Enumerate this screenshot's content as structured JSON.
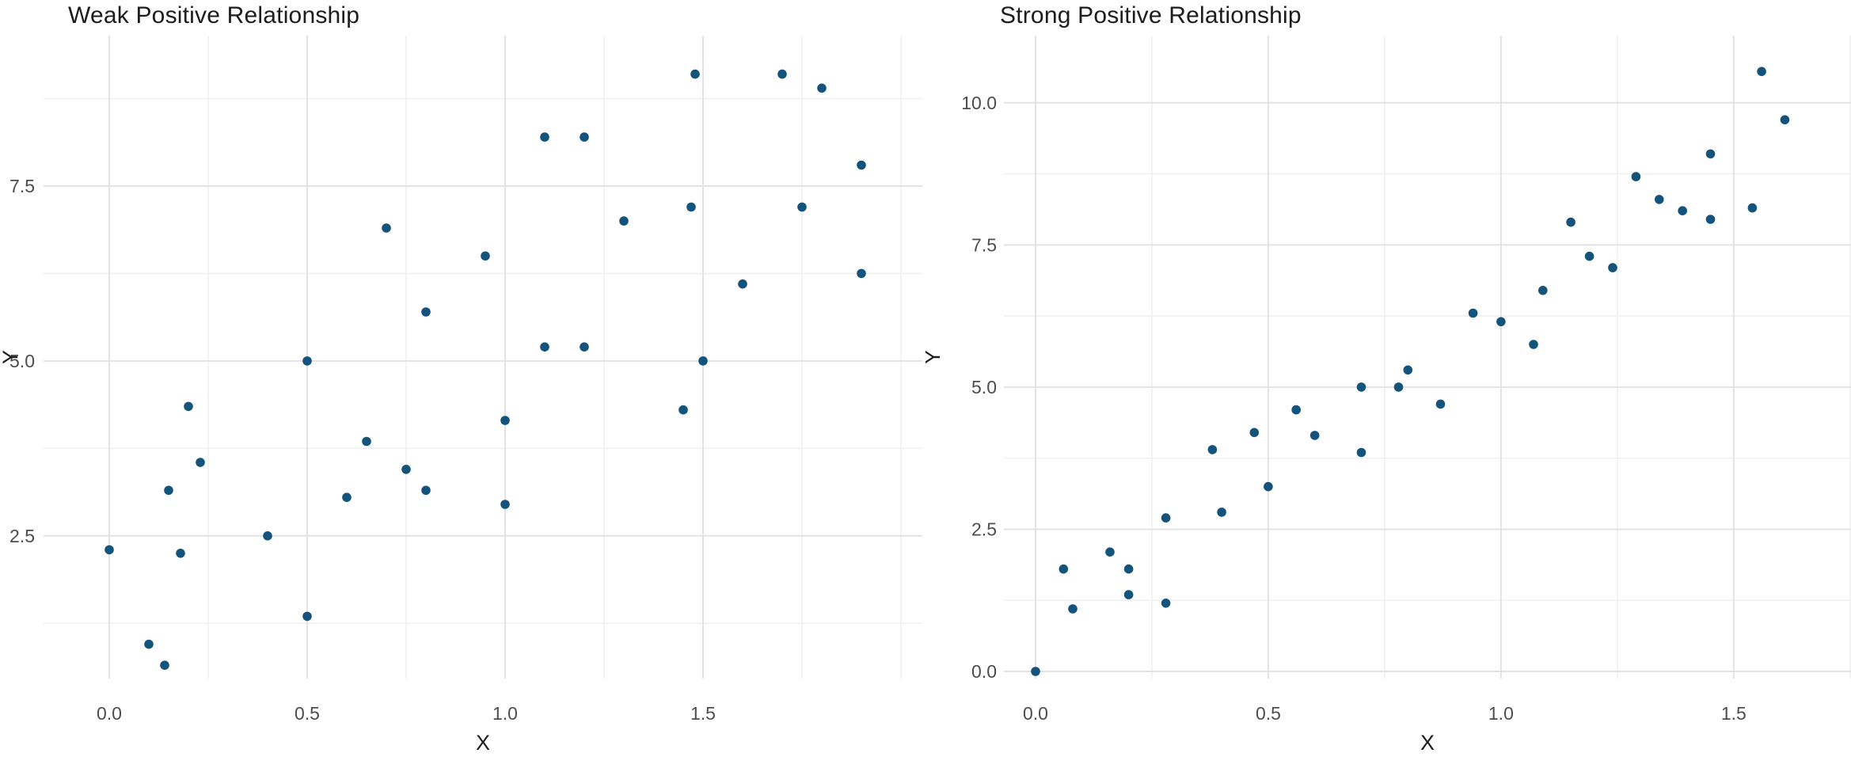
{
  "figure": {
    "background": "#ffffff",
    "grid_major_color": "#e3e3e3",
    "grid_minor_color": "#f0f0f0",
    "tick_text_color": "#4d4d4d",
    "title_text_color": "#1d1d1d"
  },
  "chart_data": [
    {
      "type": "scatter",
      "title": "Weak Positive Relationship",
      "xlabel": "X",
      "ylabel": "Y",
      "legend_position": "none",
      "grid": true,
      "point_color": "#14537C",
      "xlim": [
        -0.166,
        2.054
      ],
      "ylim": [
        0.46,
        9.65
      ],
      "x_tick_values": [
        0.0,
        0.5,
        1.0,
        1.5
      ],
      "x_tick_labels": [
        "0.0",
        "0.5",
        "1.0",
        "1.5"
      ],
      "x_minor_values": [
        0.25,
        0.75,
        1.25,
        1.75,
        2.0
      ],
      "y_tick_values": [
        2.5,
        5.0,
        7.5
      ],
      "y_tick_labels": [
        "2.5",
        "5.0",
        "7.5"
      ],
      "y_minor_values": [
        1.25,
        3.75,
        6.25,
        8.75
      ],
      "points": [
        [
          0.0,
          2.3
        ],
        [
          0.1,
          0.95
        ],
        [
          0.14,
          0.65
        ],
        [
          0.15,
          3.15
        ],
        [
          0.18,
          2.25
        ],
        [
          0.2,
          4.35
        ],
        [
          0.23,
          3.55
        ],
        [
          0.4,
          2.5
        ],
        [
          0.5,
          1.35
        ],
        [
          0.5,
          5.0
        ],
        [
          0.6,
          3.05
        ],
        [
          0.65,
          3.85
        ],
        [
          0.7,
          6.9
        ],
        [
          0.75,
          3.45
        ],
        [
          0.8,
          3.15
        ],
        [
          0.8,
          5.7
        ],
        [
          0.95,
          6.5
        ],
        [
          1.0,
          4.15
        ],
        [
          1.0,
          2.95
        ],
        [
          1.1,
          5.2
        ],
        [
          1.1,
          8.2
        ],
        [
          1.2,
          5.2
        ],
        [
          1.2,
          8.2
        ],
        [
          1.3,
          7.0
        ],
        [
          1.45,
          4.3
        ],
        [
          1.47,
          7.2
        ],
        [
          1.48,
          9.1
        ],
        [
          1.5,
          5.0
        ],
        [
          1.6,
          6.1
        ],
        [
          1.7,
          9.1
        ],
        [
          1.75,
          7.2
        ],
        [
          1.8,
          8.9
        ],
        [
          1.9,
          6.25
        ],
        [
          1.9,
          7.8
        ]
      ]
    },
    {
      "type": "scatter",
      "title": "Strong Positive Relationship",
      "xlabel": "X",
      "ylabel": "Y",
      "legend_position": "none",
      "grid": true,
      "point_color": "#14537C",
      "xlim": [
        -0.068,
        1.752
      ],
      "ylim": [
        -0.125,
        11.18
      ],
      "x_tick_values": [
        0.0,
        0.5,
        1.0,
        1.5
      ],
      "x_tick_labels": [
        "0.0",
        "0.5",
        "1.0",
        "1.5"
      ],
      "x_minor_values": [
        0.25,
        0.75,
        1.25,
        1.75
      ],
      "y_tick_values": [
        0.0,
        2.5,
        5.0,
        7.5,
        10.0
      ],
      "y_tick_labels": [
        "0.0",
        "2.5",
        "5.0",
        "7.5",
        "10.0"
      ],
      "y_minor_values": [
        1.25,
        3.75,
        6.25,
        8.75
      ],
      "points": [
        [
          0.0,
          0.0
        ],
        [
          0.06,
          1.8
        ],
        [
          0.08,
          1.1
        ],
        [
          0.16,
          2.1
        ],
        [
          0.2,
          1.8
        ],
        [
          0.2,
          1.35
        ],
        [
          0.28,
          2.7
        ],
        [
          0.28,
          1.2
        ],
        [
          0.38,
          3.9
        ],
        [
          0.4,
          2.8
        ],
        [
          0.47,
          4.2
        ],
        [
          0.5,
          3.25
        ],
        [
          0.56,
          4.6
        ],
        [
          0.6,
          4.15
        ],
        [
          0.7,
          3.85
        ],
        [
          0.7,
          5.0
        ],
        [
          0.78,
          5.0
        ],
        [
          0.8,
          5.3
        ],
        [
          0.87,
          4.7
        ],
        [
          0.94,
          6.3
        ],
        [
          1.0,
          6.15
        ],
        [
          1.07,
          5.75
        ],
        [
          1.09,
          6.7
        ],
        [
          1.15,
          7.9
        ],
        [
          1.19,
          7.3
        ],
        [
          1.24,
          7.1
        ],
        [
          1.29,
          8.7
        ],
        [
          1.34,
          8.3
        ],
        [
          1.39,
          8.1
        ],
        [
          1.45,
          7.95
        ],
        [
          1.45,
          9.1
        ],
        [
          1.54,
          8.15
        ],
        [
          1.56,
          10.55
        ],
        [
          1.61,
          9.7
        ]
      ]
    }
  ]
}
